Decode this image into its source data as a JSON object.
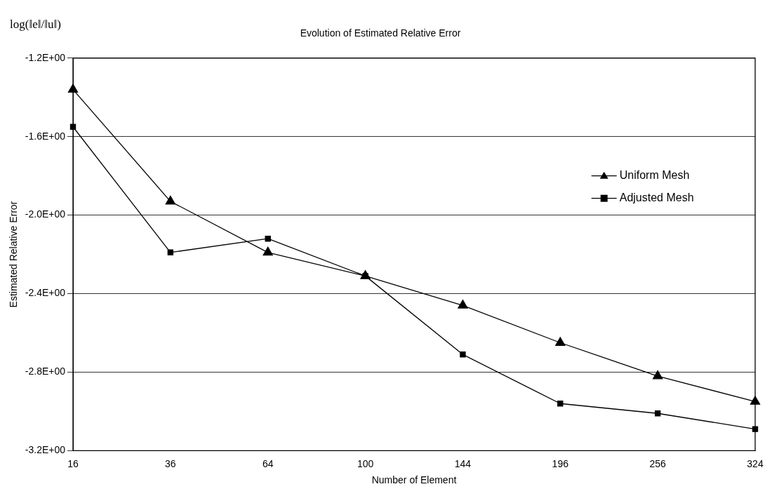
{
  "chart_data": {
    "type": "line",
    "title": "Evolution of Estimated Relative Error",
    "xlabel": "Number of Element",
    "ylabel": "Estimated Relative Error",
    "annotations": [
      "log(‖e‖/‖u‖)"
    ],
    "categories": [
      "16",
      "36",
      "64",
      "100",
      "144",
      "196",
      "256",
      "324"
    ],
    "series": [
      {
        "name": "Uniform Mesh",
        "color": "#000000",
        "marker": "triangle",
        "values": [
          -1.36,
          -1.93,
          -2.19,
          -2.31,
          -2.46,
          -2.65,
          -2.82,
          -2.95
        ]
      },
      {
        "name": "Adjusted Mesh",
        "color": "#000000",
        "marker": "square",
        "values": [
          -1.55,
          -2.19,
          -2.12,
          -2.31,
          -2.71,
          -2.96,
          -3.01,
          -3.09
        ]
      }
    ],
    "ylim": [
      -3.2,
      -1.2
    ],
    "yticks": [
      {
        "value": -3.2,
        "label": "-3.2E+00"
      },
      {
        "value": -2.8,
        "label": "-2.8E+00"
      },
      {
        "value": -2.4,
        "label": "-2.4E+00"
      },
      {
        "value": -2.0,
        "label": "-2.0E+00"
      },
      {
        "value": -1.6,
        "label": "-1.6E+00"
      },
      {
        "value": -1.2,
        "label": "-1.2E+00"
      }
    ],
    "grid": "y",
    "legend": "right",
    "line_style": "solid"
  }
}
